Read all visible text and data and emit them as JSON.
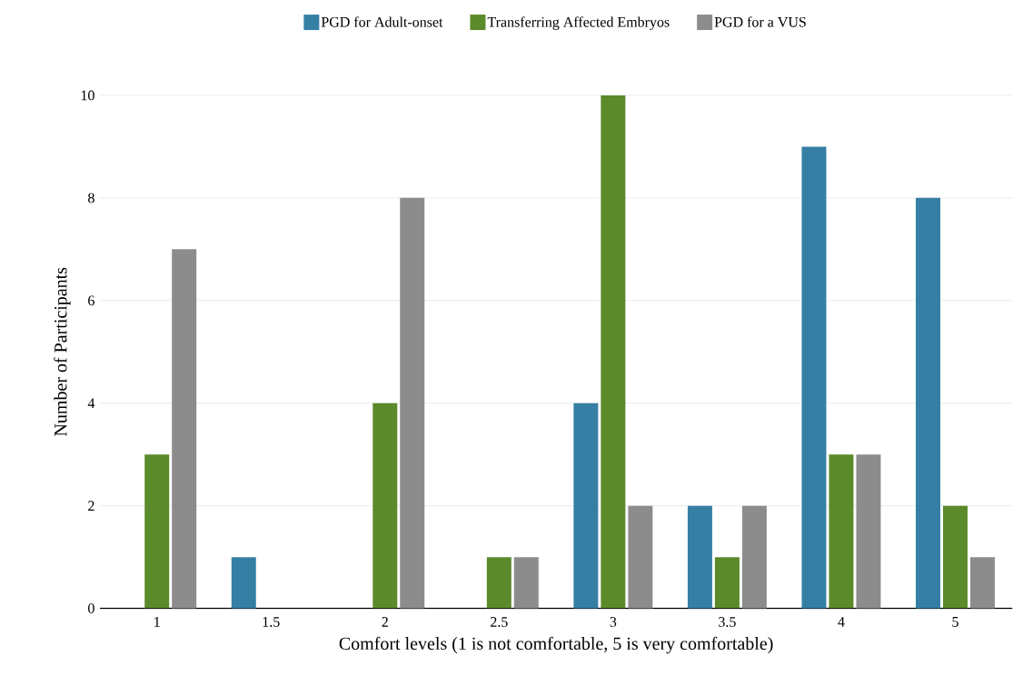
{
  "chart_data": {
    "type": "bar",
    "xlabel": "Comfort levels (1 is not comfortable, 5 is very comfortable)",
    "ylabel": "Number of Participants",
    "categories": [
      "1",
      "1.5",
      "2",
      "2.5",
      "3",
      "3.5",
      "4",
      "5"
    ],
    "series": [
      {
        "name": "PGD for Adult-onset",
        "color": "#357fa5",
        "values": [
          0,
          1,
          0,
          0,
          4,
          2,
          9,
          8
        ]
      },
      {
        "name": "Transferring Affected Embryos",
        "color": "#5a8a2a",
        "values": [
          3,
          0,
          4,
          1,
          10,
          1,
          3,
          2
        ]
      },
      {
        "name": "PGD for a VUS",
        "color": "#8c8c8c",
        "values": [
          7,
          0,
          8,
          1,
          2,
          2,
          3,
          1
        ]
      }
    ],
    "ylim": [
      0,
      10
    ],
    "yticks": [
      0,
      2,
      4,
      6,
      8,
      10
    ],
    "grid": "y",
    "legend": "top"
  }
}
